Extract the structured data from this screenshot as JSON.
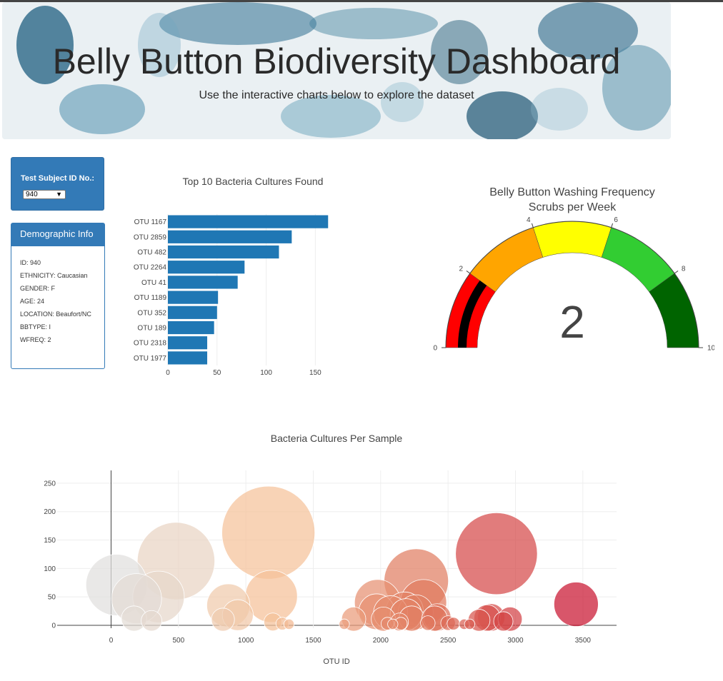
{
  "header": {
    "title": "Belly Button Biodiversity Dashboard",
    "subtitle": "Use the interactive charts below to explore the dataset"
  },
  "selector": {
    "label": "Test Subject ID No.:",
    "value": "940"
  },
  "demographic": {
    "title": "Demographic Info",
    "items": [
      "ID: 940",
      "ETHNICITY: Caucasian",
      "GENDER: F",
      "AGE: 24",
      "LOCATION: Beaufort/NC",
      "BBTYPE: I",
      "WFREQ: 2"
    ]
  },
  "colors": {
    "primary": "#337ab7",
    "bar": "#1f77b4"
  },
  "chart_data": [
    {
      "type": "bar",
      "orientation": "horizontal",
      "title": "Top 10 Bacteria Cultures Found",
      "categories": [
        "OTU 1167",
        "OTU 2859",
        "OTU 482",
        "OTU 2264",
        "OTU 41",
        "OTU 1189",
        "OTU 352",
        "OTU 189",
        "OTU 2318",
        "OTU 1977"
      ],
      "values": [
        163,
        126,
        113,
        78,
        71,
        51,
        50,
        47,
        40,
        40
      ],
      "xlim": [
        0,
        165
      ],
      "xticks": [
        0,
        50,
        100,
        150
      ]
    },
    {
      "type": "gauge",
      "title": "Belly Button Washing Frequency",
      "subtitle": "Scrubs per Week",
      "value": 2,
      "range": [
        0,
        10
      ],
      "ticks": [
        0,
        2,
        4,
        6,
        8,
        10
      ],
      "steps": [
        {
          "range": [
            0,
            2
          ],
          "color": "#ff0000"
        },
        {
          "range": [
            2,
            4
          ],
          "color": "#ffa500"
        },
        {
          "range": [
            4,
            6
          ],
          "color": "#ffff00"
        },
        {
          "range": [
            6,
            8
          ],
          "color": "#32cd32"
        },
        {
          "range": [
            8,
            10
          ],
          "color": "#006400"
        }
      ],
      "bar_color": "#000000"
    },
    {
      "type": "scatter",
      "title": "Bacteria Cultures Per Sample",
      "xlabel": "OTU ID",
      "xlim": [
        -400,
        3750
      ],
      "ylim": [
        -5,
        290
      ],
      "xticks": [
        0,
        500,
        1000,
        1500,
        2000,
        2500,
        3000,
        3500
      ],
      "yticks": [
        0,
        50,
        100,
        150,
        200,
        250
      ],
      "points": [
        {
          "x": 41,
          "y": 71
        },
        {
          "x": 189,
          "y": 47
        },
        {
          "x": 352,
          "y": 50
        },
        {
          "x": 482,
          "y": 113
        },
        {
          "x": 1167,
          "y": 163
        },
        {
          "x": 1189,
          "y": 51
        },
        {
          "x": 870,
          "y": 35
        },
        {
          "x": 940,
          "y": 18
        },
        {
          "x": 2264,
          "y": 78
        },
        {
          "x": 2318,
          "y": 40
        },
        {
          "x": 1977,
          "y": 40
        },
        {
          "x": 2859,
          "y": 126
        },
        {
          "x": 3450,
          "y": 37
        },
        {
          "x": 1970,
          "y": 24
        },
        {
          "x": 2074,
          "y": 22
        },
        {
          "x": 2178,
          "y": 26
        },
        {
          "x": 2188,
          "y": 19
        },
        {
          "x": 2260,
          "y": 23
        },
        {
          "x": 2020,
          "y": 11
        },
        {
          "x": 2230,
          "y": 12
        },
        {
          "x": 2400,
          "y": 12
        },
        {
          "x": 2420,
          "y": 14
        },
        {
          "x": 2820,
          "y": 14
        },
        {
          "x": 2790,
          "y": 13
        },
        {
          "x": 2730,
          "y": 9
        },
        {
          "x": 2960,
          "y": 11
        },
        {
          "x": 2910,
          "y": 7
        },
        {
          "x": 1800,
          "y": 11
        },
        {
          "x": 830,
          "y": 10
        },
        {
          "x": 170,
          "y": 12
        },
        {
          "x": 300,
          "y": 8
        },
        {
          "x": 1200,
          "y": 6
        },
        {
          "x": 1270,
          "y": 3
        },
        {
          "x": 1320,
          "y": 2
        },
        {
          "x": 2140,
          "y": 6
        },
        {
          "x": 2500,
          "y": 4
        },
        {
          "x": 2620,
          "y": 2
        },
        {
          "x": 2540,
          "y": 3
        },
        {
          "x": 2660,
          "y": 2
        },
        {
          "x": 1730,
          "y": 2
        },
        {
          "x": 2050,
          "y": 3
        },
        {
          "x": 2090,
          "y": 2
        },
        {
          "x": 2350,
          "y": 4
        },
        {
          "x": 2150,
          "y": 3
        }
      ],
      "colorscale": [
        "#e0e0e0",
        "#f5c29a",
        "#e07a5f",
        "#c8102e"
      ]
    }
  ]
}
